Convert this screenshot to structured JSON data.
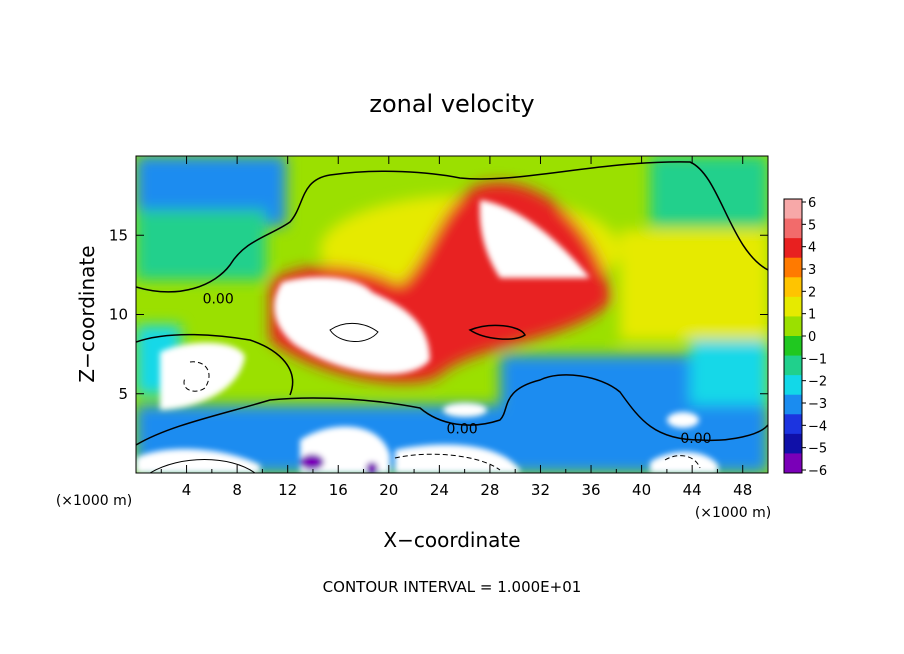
{
  "chart_data": {
    "type": "heatmap",
    "title": "zonal velocity",
    "xlabel": "X−coordinate",
    "ylabel": "Z−coordinate",
    "x_unit_left": "(×1000 m)",
    "x_unit_right": "(×1000 m)",
    "xlim": [
      0,
      50
    ],
    "ylim": [
      0,
      20
    ],
    "x_ticks": [
      4,
      8,
      12,
      16,
      20,
      24,
      28,
      32,
      36,
      40,
      44,
      48
    ],
    "y_ticks": [
      5,
      10,
      15
    ],
    "footer": "CONTOUR INTERVAL = 1.000E+01",
    "contour_labels": [
      {
        "text": "0.00",
        "x": 6.5,
        "z": 11.0
      },
      {
        "text": "0.00",
        "x": 25.8,
        "z": 2.8
      },
      {
        "text": "0.00",
        "x": 44.3,
        "z": 2.2
      }
    ],
    "colorbar": {
      "labels": [
        "6",
        "5",
        "4",
        "3",
        "2",
        "1",
        "0",
        "−1",
        "−2",
        "−3",
        "−4",
        "−5",
        "−6"
      ],
      "colors": [
        "#f7a8a8",
        "#f26b6b",
        "#e82020",
        "#ff7a00",
        "#ffc400",
        "#e6ea00",
        "#9be000",
        "#20c820",
        "#20d08c",
        "#12d8e8",
        "#1a8cf0",
        "#1c34e0",
        "#1010a8",
        "#7a00b8"
      ]
    }
  }
}
